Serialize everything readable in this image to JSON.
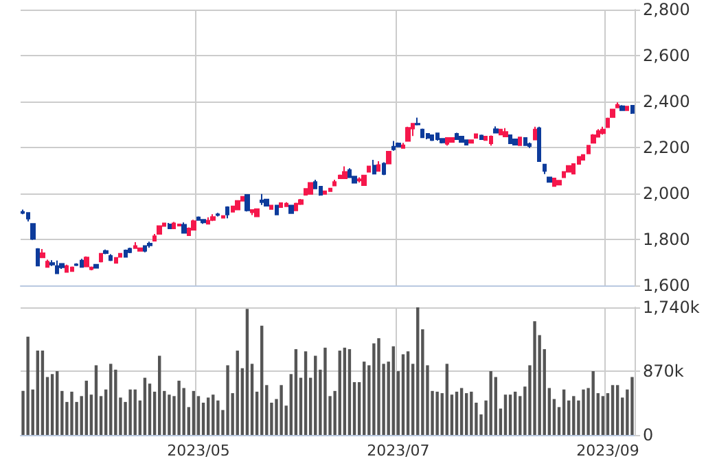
{
  "chart_data": [
    {
      "type": "candlestick",
      "categories": [
        null,
        null,
        null,
        null,
        null,
        null,
        null,
        null,
        null,
        null,
        null,
        null,
        null,
        null,
        null,
        null,
        null,
        null,
        null,
        null,
        null,
        null,
        null,
        null,
        null,
        null,
        null,
        null,
        null,
        null,
        null,
        null,
        null,
        null,
        null,
        null,
        "2023/05",
        null,
        null,
        null,
        null,
        null,
        null,
        null,
        null,
        null,
        null,
        null,
        null,
        null,
        null,
        null,
        null,
        null,
        null,
        null,
        null,
        null,
        null,
        null,
        null,
        null,
        null,
        null,
        null,
        null,
        null,
        null,
        null,
        null,
        null,
        null,
        null,
        null,
        null,
        null,
        null,
        "2023/07",
        null,
        null,
        null,
        null,
        null,
        null,
        null,
        null,
        null,
        null,
        null,
        null,
        null,
        null,
        null,
        null,
        null,
        null,
        null,
        null,
        null,
        null,
        null,
        null,
        null,
        null,
        null,
        null,
        null,
        null,
        null,
        null,
        null,
        null,
        null,
        null,
        null,
        null,
        null,
        null,
        null,
        null,
        "2023/09",
        null,
        null,
        null,
        null,
        null
      ],
      "ohlc": [
        [
          1920,
          1930,
          1910,
          1915
        ],
        [
          1916,
          1918,
          1878,
          1890
        ],
        [
          1868,
          1870,
          1798,
          1802
        ],
        [
          1758,
          1762,
          1686,
          1686
        ],
        [
          1722,
          1758,
          1720,
          1740
        ],
        [
          1680,
          1712,
          1678,
          1704
        ],
        [
          1698,
          1710,
          1684,
          1690
        ],
        [
          1684,
          1708,
          1650,
          1652
        ],
        [
          1694,
          1696,
          1672,
          1678
        ],
        [
          1658,
          1690,
          1656,
          1684
        ],
        [
          1662,
          1682,
          1660,
          1678
        ],
        [
          1692,
          1696,
          1684,
          1688
        ],
        [
          1708,
          1716,
          1678,
          1680
        ],
        [
          1682,
          1726,
          1680,
          1722
        ],
        [
          1670,
          1682,
          1666,
          1678
        ],
        [
          1690,
          1692,
          1674,
          1676
        ],
        [
          1704,
          1740,
          1700,
          1738
        ],
        [
          1750,
          1756,
          1736,
          1740
        ],
        [
          1728,
          1736,
          1706,
          1710
        ],
        [
          1698,
          1722,
          1696,
          1720
        ],
        [
          1724,
          1740,
          1722,
          1738
        ],
        [
          1752,
          1756,
          1722,
          1724
        ],
        [
          1760,
          1764,
          1740,
          1744
        ],
        [
          1762,
          1788,
          1760,
          1772
        ],
        [
          1750,
          1764,
          1748,
          1762
        ],
        [
          1772,
          1774,
          1744,
          1750
        ],
        [
          1782,
          1790,
          1764,
          1774
        ],
        [
          1794,
          1824,
          1792,
          1814
        ],
        [
          1824,
          1860,
          1822,
          1858
        ],
        [
          1858,
          1872,
          1856,
          1870
        ],
        [
          1866,
          1872,
          1846,
          1848
        ],
        [
          1848,
          1876,
          1846,
          1870
        ],
        [
          1860,
          1868,
          1858,
          1866
        ],
        [
          1864,
          1874,
          1826,
          1828
        ],
        [
          1818,
          1852,
          1816,
          1848
        ],
        [
          1842,
          1886,
          1840,
          1880
        ],
        [
          1896,
          1900,
          1882,
          1884
        ],
        [
          1886,
          1888,
          1868,
          1874
        ],
        [
          1868,
          1896,
          1866,
          1882
        ],
        [
          1884,
          1910,
          1880,
          1898
        ],
        [
          1910,
          1916,
          1900,
          1906
        ],
        [
          1894,
          1904,
          1892,
          1902
        ],
        [
          1940,
          1944,
          1892,
          1908
        ],
        [
          1920,
          1946,
          1918,
          1944
        ],
        [
          1930,
          1970,
          1928,
          1968
        ],
        [
          1968,
          1988,
          1966,
          1986
        ],
        [
          1994,
          1996,
          1922,
          1926
        ],
        [
          1918,
          1930,
          1906,
          1928
        ],
        [
          1900,
          1934,
          1898,
          1932
        ],
        [
          1970,
          1998,
          1950,
          1962
        ],
        [
          1974,
          1976,
          1944,
          1946
        ],
        [
          1932,
          1950,
          1930,
          1948
        ],
        [
          1948,
          1950,
          1906,
          1908
        ],
        [
          1940,
          1960,
          1938,
          1958
        ],
        [
          1944,
          1962,
          1942,
          1956
        ],
        [
          1948,
          1950,
          1912,
          1914
        ],
        [
          1926,
          1960,
          1924,
          1956
        ],
        [
          1954,
          1976,
          1950,
          1972
        ],
        [
          1994,
          2022,
          1992,
          2020
        ],
        [
          1998,
          2048,
          1996,
          2046
        ],
        [
          2050,
          2060,
          2020,
          2022
        ],
        [
          2030,
          2032,
          1990,
          1994
        ],
        [
          1998,
          2012,
          1996,
          2010
        ],
        [
          2010,
          2024,
          2008,
          2022
        ],
        [
          2034,
          2060,
          2032,
          2050
        ],
        [
          2066,
          2082,
          2064,
          2078
        ],
        [
          2066,
          2118,
          2064,
          2094
        ],
        [
          2102,
          2110,
          2068,
          2070
        ],
        [
          2074,
          2076,
          2044,
          2046
        ],
        [
          2056,
          2070,
          2048,
          2062
        ],
        [
          2036,
          2080,
          2034,
          2078
        ],
        [
          2094,
          2120,
          2092,
          2118
        ],
        [
          2122,
          2146,
          2084,
          2086
        ],
        [
          2098,
          2140,
          2096,
          2124
        ],
        [
          2130,
          2136,
          2080,
          2084
        ],
        [
          2130,
          2184,
          2128,
          2182
        ],
        [
          2204,
          2228,
          2186,
          2192
        ],
        [
          2218,
          2222,
          2202,
          2204
        ],
        [
          2198,
          2220,
          2196,
          2210
        ],
        [
          2228,
          2290,
          2226,
          2286
        ],
        [
          2282,
          2306,
          2250,
          2304
        ],
        [
          2304,
          2330,
          2296,
          2300
        ],
        [
          2278,
          2282,
          2242,
          2244
        ],
        [
          2260,
          2262,
          2236,
          2242
        ],
        [
          2254,
          2256,
          2228,
          2232
        ],
        [
          2262,
          2264,
          2230,
          2236
        ],
        [
          2238,
          2240,
          2218,
          2222
        ],
        [
          2216,
          2244,
          2208,
          2242
        ],
        [
          2224,
          2244,
          2222,
          2242
        ],
        [
          2260,
          2264,
          2234,
          2236
        ],
        [
          2248,
          2250,
          2222,
          2224
        ],
        [
          2232,
          2234,
          2210,
          2212
        ],
        [
          2220,
          2234,
          2218,
          2232
        ],
        [
          2242,
          2260,
          2240,
          2258
        ],
        [
          2252,
          2256,
          2234,
          2236
        ],
        [
          2232,
          2250,
          2230,
          2248
        ],
        [
          2218,
          2252,
          2208,
          2248
        ],
        [
          2280,
          2292,
          2262,
          2264
        ],
        [
          2256,
          2280,
          2254,
          2278
        ],
        [
          2248,
          2284,
          2246,
          2268
        ],
        [
          2254,
          2256,
          2216,
          2218
        ],
        [
          2236,
          2238,
          2210,
          2212
        ],
        [
          2210,
          2246,
          2208,
          2244
        ],
        [
          2242,
          2244,
          2208,
          2210
        ],
        [
          2216,
          2222,
          2198,
          2206
        ],
        [
          2234,
          2290,
          2232,
          2278
        ],
        [
          2284,
          2290,
          2138,
          2140
        ],
        [
          2126,
          2128,
          2084,
          2098
        ],
        [
          2070,
          2072,
          2048,
          2050
        ],
        [
          2032,
          2068,
          2030,
          2066
        ],
        [
          2038,
          2058,
          2036,
          2056
        ],
        [
          2070,
          2096,
          2068,
          2094
        ],
        [
          2094,
          2122,
          2092,
          2120
        ],
        [
          2086,
          2130,
          2084,
          2128
        ],
        [
          2128,
          2162,
          2126,
          2160
        ],
        [
          2146,
          2170,
          2144,
          2168
        ],
        [
          2174,
          2210,
          2172,
          2208
        ],
        [
          2220,
          2258,
          2218,
          2254
        ],
        [
          2246,
          2280,
          2244,
          2272
        ],
        [
          2262,
          2290,
          2256,
          2278
        ],
        [
          2288,
          2330,
          2286,
          2326
        ],
        [
          2332,
          2368,
          2330,
          2366
        ],
        [
          2374,
          2396,
          2372,
          2386
        ],
        [
          2380,
          2384,
          2360,
          2362
        ],
        [
          2362,
          2380,
          2360,
          2378
        ],
        [
          2382,
          2384,
          2346,
          2350
        ]
      ],
      "colors": [
        "#0d3b9b",
        "#0d3b9b",
        "#0d3b9b",
        "#0d3b9b",
        "#f5174b",
        "#f5174b",
        "#0d3b9b",
        "#0d3b9b",
        "#0d3b9b",
        "#f5174b",
        "#f5174b",
        "#0d3b9b",
        "#0d3b9b",
        "#f5174b",
        "#f5174b",
        "#0d3b9b",
        "#f5174b",
        "#0d3b9b",
        "#0d3b9b",
        "#f5174b",
        "#f5174b",
        "#0d3b9b",
        "#0d3b9b",
        "#f5174b",
        "#f5174b",
        "#0d3b9b",
        "#0d3b9b",
        "#f5174b",
        "#f5174b",
        "#f5174b",
        "#0d3b9b",
        "#f5174b",
        "#f5174b",
        "#0d3b9b",
        "#f5174b",
        "#f5174b",
        "#0d3b9b",
        "#0d3b9b",
        "#f5174b",
        "#f5174b",
        "#0d3b9b",
        "#f5174b",
        "#0d3b9b",
        "#f5174b",
        "#f5174b",
        "#f5174b",
        "#0d3b9b",
        "#f5174b",
        "#f5174b",
        "#0d3b9b",
        "#0d3b9b",
        "#f5174b",
        "#0d3b9b",
        "#f5174b",
        "#f5174b",
        "#0d3b9b",
        "#f5174b",
        "#f5174b",
        "#f5174b",
        "#f5174b",
        "#0d3b9b",
        "#0d3b9b",
        "#f5174b",
        "#f5174b",
        "#f5174b",
        "#f5174b",
        "#f5174b",
        "#0d3b9b",
        "#0d3b9b",
        "#f5174b",
        "#f5174b",
        "#f5174b",
        "#0d3b9b",
        "#f5174b",
        "#0d3b9b",
        "#f5174b",
        "#0d3b9b",
        "#0d3b9b",
        "#f5174b",
        "#f5174b",
        "#f5174b",
        "#0d3b9b",
        "#0d3b9b",
        "#0d3b9b",
        "#0d3b9b",
        "#0d3b9b",
        "#0d3b9b",
        "#f5174b",
        "#f5174b",
        "#0d3b9b",
        "#0d3b9b",
        "#0d3b9b",
        "#f5174b",
        "#f5174b",
        "#0d3b9b",
        "#f5174b",
        "#f5174b",
        "#0d3b9b",
        "#f5174b",
        "#f5174b",
        "#0d3b9b",
        "#0d3b9b",
        "#f5174b",
        "#0d3b9b",
        "#0d3b9b",
        "#f5174b",
        "#0d3b9b",
        "#0d3b9b",
        "#0d3b9b",
        "#f5174b",
        "#f5174b",
        "#f5174b",
        "#f5174b",
        "#f5174b",
        "#f5174b",
        "#f5174b",
        "#f5174b",
        "#f5174b",
        "#f5174b",
        "#f5174b",
        "#f5174b",
        "#f5174b",
        "#f5174b",
        "#0d3b9b",
        "#f5174b",
        "#0d3b9b"
      ],
      "ylim": [
        1600,
        2800
      ],
      "yticks": [
        {
          "value": 1600,
          "label": "1,600"
        },
        {
          "value": 1800,
          "label": "1,800"
        },
        {
          "value": 2000,
          "label": "2,000"
        },
        {
          "value": 2200,
          "label": "2,200"
        },
        {
          "value": 2400,
          "label": "2,400"
        },
        {
          "value": 2600,
          "label": "2,600"
        },
        {
          "value": 2800,
          "label": "2,800"
        }
      ],
      "grid": true,
      "tick_labels": "y"
    },
    {
      "type": "bar",
      "categories": [
        null,
        null,
        null,
        null,
        null,
        null,
        null,
        null,
        null,
        null,
        null,
        null,
        null,
        null,
        null,
        null,
        null,
        null,
        null,
        null,
        null,
        null,
        null,
        null,
        null,
        null,
        null,
        null,
        null,
        null,
        null,
        null,
        null,
        null,
        null,
        null,
        "2023/05",
        null,
        null,
        null,
        null,
        null,
        null,
        null,
        null,
        null,
        null,
        null,
        null,
        null,
        null,
        null,
        null,
        null,
        null,
        null,
        null,
        null,
        null,
        null,
        null,
        null,
        null,
        null,
        null,
        null,
        null,
        null,
        null,
        null,
        null,
        null,
        null,
        null,
        null,
        null,
        null,
        "2023/07",
        null,
        null,
        null,
        null,
        null,
        null,
        null,
        null,
        null,
        null,
        null,
        null,
        null,
        null,
        null,
        null,
        null,
        null,
        null,
        null,
        null,
        null,
        null,
        null,
        null,
        null,
        null,
        null,
        null,
        null,
        null,
        null,
        null,
        null,
        null,
        null,
        null,
        null,
        null,
        null,
        null,
        null,
        "2023/09",
        null,
        null,
        null,
        null,
        null
      ],
      "values": [
        600,
        1340,
        620,
        1150,
        1150,
        790,
        830,
        870,
        600,
        450,
        590,
        450,
        530,
        740,
        550,
        950,
        530,
        620,
        970,
        890,
        510,
        450,
        620,
        620,
        470,
        780,
        700,
        590,
        1080,
        600,
        550,
        530,
        740,
        640,
        380,
        600,
        530,
        440,
        510,
        550,
        470,
        340,
        950,
        570,
        1150,
        910,
        1720,
        970,
        590,
        1490,
        680,
        440,
        490,
        680,
        400,
        830,
        1170,
        780,
        1140,
        780,
        1080,
        890,
        1190,
        530,
        600,
        1150,
        1190,
        1170,
        720,
        720,
        1000,
        950,
        1250,
        1320,
        970,
        1000,
        1210,
        870,
        1100,
        1140,
        970,
        1740,
        1440,
        950,
        600,
        590,
        570,
        970,
        550,
        590,
        640,
        570,
        590,
        440,
        280,
        470,
        870,
        790,
        360,
        550,
        550,
        590,
        530,
        660,
        950,
        1550,
        1360,
        1170,
        640,
        490,
        380,
        620,
        470,
        530,
        470,
        620,
        640,
        870,
        570,
        530,
        570,
        680,
        680,
        510,
        620,
        790
      ],
      "color": "#555555",
      "ylim": [
        0,
        1740
      ],
      "yticks": [
        0,
        {
          "value": 870,
          "label": "870k"
        },
        {
          "value": 1740,
          "label": "1,740k"
        }
      ],
      "grid": true
    }
  ]
}
